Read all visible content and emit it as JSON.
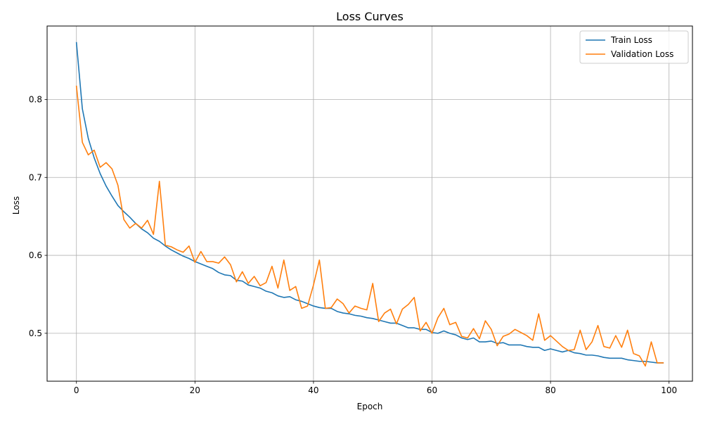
{
  "chart_data": {
    "type": "line",
    "title": "Loss Curves",
    "xlabel": "Epoch",
    "ylabel": "Loss",
    "xlim": [
      -4.95,
      103.95
    ],
    "ylim": [
      0.4385,
      0.8943
    ],
    "xticks": [
      0,
      20,
      40,
      60,
      80,
      100
    ],
    "yticks": [
      0.5,
      0.6,
      0.7,
      0.8
    ],
    "grid": true,
    "legend_position": "top-right",
    "x": [
      0,
      1,
      2,
      3,
      4,
      5,
      6,
      7,
      8,
      9,
      10,
      11,
      12,
      13,
      14,
      15,
      16,
      17,
      18,
      19,
      20,
      21,
      22,
      23,
      24,
      25,
      26,
      27,
      28,
      29,
      30,
      31,
      32,
      33,
      34,
      35,
      36,
      37,
      38,
      39,
      40,
      41,
      42,
      43,
      44,
      45,
      46,
      47,
      48,
      49,
      50,
      51,
      52,
      53,
      54,
      55,
      56,
      57,
      58,
      59,
      60,
      61,
      62,
      63,
      64,
      65,
      66,
      67,
      68,
      69,
      70,
      71,
      72,
      73,
      74,
      75,
      76,
      77,
      78,
      79,
      80,
      81,
      82,
      83,
      84,
      85,
      86,
      87,
      88,
      89,
      90,
      91,
      92,
      93,
      94,
      95,
      96,
      97,
      98,
      99
    ],
    "series": [
      {
        "name": "Train Loss",
        "color": "#1f77b4",
        "values": [
          0.873,
          0.788,
          0.75,
          0.725,
          0.705,
          0.689,
          0.676,
          0.664,
          0.656,
          0.649,
          0.641,
          0.634,
          0.629,
          0.622,
          0.618,
          0.612,
          0.607,
          0.603,
          0.599,
          0.596,
          0.592,
          0.589,
          0.586,
          0.583,
          0.578,
          0.575,
          0.574,
          0.568,
          0.567,
          0.562,
          0.56,
          0.558,
          0.554,
          0.552,
          0.548,
          0.546,
          0.547,
          0.543,
          0.541,
          0.538,
          0.535,
          0.533,
          0.532,
          0.532,
          0.528,
          0.526,
          0.525,
          0.523,
          0.522,
          0.52,
          0.519,
          0.517,
          0.515,
          0.513,
          0.513,
          0.51,
          0.507,
          0.507,
          0.505,
          0.505,
          0.501,
          0.5,
          0.503,
          0.5,
          0.498,
          0.494,
          0.492,
          0.494,
          0.489,
          0.489,
          0.49,
          0.487,
          0.488,
          0.485,
          0.485,
          0.485,
          0.483,
          0.482,
          0.482,
          0.478,
          0.48,
          0.478,
          0.476,
          0.478,
          0.475,
          0.474,
          0.472,
          0.472,
          0.471,
          0.469,
          0.468,
          0.468,
          0.468,
          0.466,
          0.465,
          0.464,
          0.464,
          0.463,
          0.462,
          0.462
        ]
      },
      {
        "name": "Validation Loss",
        "color": "#ff7f0e",
        "values": [
          0.817,
          0.745,
          0.729,
          0.735,
          0.713,
          0.719,
          0.711,
          0.69,
          0.646,
          0.635,
          0.641,
          0.635,
          0.645,
          0.627,
          0.695,
          0.613,
          0.611,
          0.607,
          0.604,
          0.612,
          0.591,
          0.605,
          0.592,
          0.592,
          0.59,
          0.598,
          0.588,
          0.566,
          0.579,
          0.564,
          0.573,
          0.561,
          0.565,
          0.586,
          0.558,
          0.594,
          0.555,
          0.56,
          0.532,
          0.535,
          0.562,
          0.594,
          0.532,
          0.533,
          0.544,
          0.538,
          0.526,
          0.535,
          0.532,
          0.53,
          0.564,
          0.515,
          0.526,
          0.531,
          0.512,
          0.531,
          0.537,
          0.546,
          0.503,
          0.514,
          0.5,
          0.52,
          0.532,
          0.511,
          0.514,
          0.496,
          0.494,
          0.506,
          0.493,
          0.516,
          0.505,
          0.484,
          0.496,
          0.499,
          0.505,
          0.501,
          0.497,
          0.491,
          0.525,
          0.491,
          0.497,
          0.49,
          0.483,
          0.478,
          0.479,
          0.504,
          0.479,
          0.489,
          0.51,
          0.483,
          0.481,
          0.497,
          0.482,
          0.504,
          0.474,
          0.471,
          0.458,
          0.489,
          0.462,
          0.462
        ]
      }
    ]
  }
}
